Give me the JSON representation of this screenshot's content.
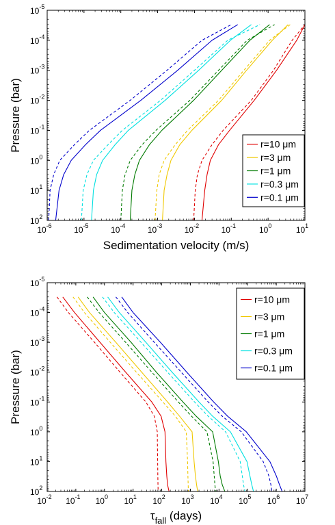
{
  "chart_data": [
    {
      "type": "line",
      "xlabel": "Sedimentation velocity (m/s)",
      "ylabel": "Pressure (bar)",
      "xscale": "log",
      "yscale": "log",
      "y_reversed": true,
      "xlim": [
        1e-06,
        10
      ],
      "ylim": [
        1e-05,
        100
      ],
      "x_tick_values": [
        1e-06,
        1e-05,
        0.0001,
        0.001,
        0.01,
        0.1,
        1,
        10
      ],
      "x_tick_labels": [
        [
          "10",
          "-6"
        ],
        [
          "10",
          "-5"
        ],
        [
          "10",
          "-4"
        ],
        [
          "10",
          "-3"
        ],
        [
          "10",
          "-2"
        ],
        [
          "10",
          "-1"
        ],
        [
          "10",
          "0"
        ],
        [
          "10",
          "1"
        ]
      ],
      "y_tick_values": [
        1e-05,
        0.0001,
        0.001,
        0.01,
        0.1,
        1,
        10,
        100
      ],
      "y_tick_labels": [
        [
          "10",
          "-5"
        ],
        [
          "10",
          "-4"
        ],
        [
          "10",
          "-3"
        ],
        [
          "10",
          "-2"
        ],
        [
          "10",
          "-1"
        ],
        [
          "10",
          "0"
        ],
        [
          "10",
          "1"
        ],
        [
          "10",
          "2"
        ]
      ],
      "legend_position": "right-middle",
      "legend": [
        "r=10 μm",
        "r=3 μm",
        "r=1 μm",
        "r=0.3 μm",
        "r=0.1 μm"
      ],
      "series": [
        {
          "name": "r=10 μm",
          "color": "#e00000",
          "dash": false,
          "pressure": [
            100,
            10,
            3,
            1,
            0.3,
            0.1,
            0.01,
            0.001,
            0.0001,
            3e-05
          ],
          "x": [
            0.016,
            0.019,
            0.022,
            0.027,
            0.045,
            0.09,
            0.42,
            1.7,
            6.0,
            10.0
          ]
        },
        {
          "name": "r=10 μm",
          "color": "#e00000",
          "dash": true,
          "pressure": [
            100,
            10,
            3,
            1,
            0.3,
            0.1,
            0.01,
            0.001,
            0.0001,
            3e-05
          ],
          "x": [
            0.0095,
            0.0105,
            0.012,
            0.016,
            0.03,
            0.06,
            0.35,
            1.4,
            4.5,
            10.0
          ]
        },
        {
          "name": "r=3 μm",
          "color": "#f0c800",
          "dash": false,
          "pressure": [
            100,
            10,
            3,
            1,
            0.3,
            0.1,
            0.01,
            0.001,
            0.0001,
            3e-05
          ],
          "x": [
            0.00135,
            0.0015,
            0.0018,
            0.0023,
            0.004,
            0.0085,
            0.055,
            0.26,
            1.3,
            3.5
          ]
        },
        {
          "name": "r=3 μm",
          "color": "#f0c800",
          "dash": true,
          "pressure": [
            100,
            10,
            3,
            1,
            0.3,
            0.1,
            0.01,
            0.001,
            0.0001,
            3e-05
          ],
          "x": [
            0.00085,
            0.00095,
            0.0011,
            0.0015,
            0.003,
            0.0065,
            0.045,
            0.22,
            1.1,
            4.0
          ]
        },
        {
          "name": "r=1 μm",
          "color": "#007a00",
          "dash": false,
          "pressure": [
            100,
            10,
            3,
            1,
            0.3,
            0.1,
            0.01,
            0.001,
            0.0001,
            3e-05
          ],
          "x": [
            0.00018,
            0.0002,
            0.00024,
            0.00032,
            0.0006,
            0.0013,
            0.0095,
            0.055,
            0.32,
            1.1
          ]
        },
        {
          "name": "r=1 μm",
          "color": "#007a00",
          "dash": true,
          "pressure": [
            100,
            10,
            3,
            1,
            0.3,
            0.1,
            0.01,
            0.001,
            0.0001,
            3e-05
          ],
          "x": [
            0.0001,
            0.00011,
            0.00013,
            0.00018,
            0.00038,
            0.0009,
            0.0075,
            0.045,
            0.27,
            1.5
          ]
        },
        {
          "name": "r=0.3 μm",
          "color": "#00e0e0",
          "dash": false,
          "pressure": [
            100,
            10,
            3,
            1,
            0.3,
            0.1,
            0.01,
            0.001,
            0.0001,
            3e-05
          ],
          "x": [
            1.6e-05,
            1.8e-05,
            2.2e-05,
            3.2e-05,
            7e-05,
            0.00016,
            0.0016,
            0.013,
            0.095,
            0.35
          ]
        },
        {
          "name": "r=0.3 μm",
          "color": "#00e0e0",
          "dash": true,
          "pressure": [
            100,
            10,
            3,
            1,
            0.3,
            0.1,
            0.01,
            0.001,
            0.0001,
            3e-05
          ],
          "x": [
            8.5e-06,
            9.5e-06,
            1.2e-05,
            1.8e-05,
            4.5e-05,
            0.00011,
            0.0012,
            0.01,
            0.08,
            0.6
          ]
        },
        {
          "name": "r=0.1 μm",
          "color": "#0000cc",
          "dash": false,
          "pressure": [
            100,
            10,
            3,
            1,
            0.3,
            0.1,
            0.01,
            0.001,
            0.0001,
            3e-05
          ],
          "x": [
            1.7e-06,
            2.1e-06,
            2.8e-06,
            4.5e-06,
            1.1e-05,
            2.8e-05,
            0.00035,
            0.0035,
            0.03,
            0.15
          ]
        },
        {
          "name": "r=0.1 μm",
          "color": "#0000cc",
          "dash": true,
          "pressure": [
            100,
            10,
            3,
            1,
            0.3,
            0.1,
            0.01,
            0.001,
            0.0001,
            3e-05
          ],
          "x": [
            1.1e-06,
            1.2e-06,
            1.5e-06,
            2.2e-06,
            5.5e-06,
            1.4e-05,
            0.00018,
            0.0018,
            0.016,
            0.1
          ]
        }
      ]
    },
    {
      "type": "line",
      "xlabel_main": "τ",
      "xlabel_sub": "fall",
      "xlabel_rest": " (days)",
      "ylabel": "Pressure (bar)",
      "xscale": "log",
      "yscale": "log",
      "y_reversed": true,
      "xlim": [
        0.01,
        10000000.0
      ],
      "ylim": [
        1e-05,
        100
      ],
      "x_tick_values": [
        0.01,
        0.1,
        1,
        10,
        100,
        1000,
        10000,
        100000,
        1000000,
        10000000
      ],
      "x_tick_labels": [
        [
          "10",
          "-2"
        ],
        [
          "10",
          "-1"
        ],
        [
          "10",
          "0"
        ],
        [
          "10",
          "1"
        ],
        [
          "10",
          "2"
        ],
        [
          "10",
          "3"
        ],
        [
          "10",
          "4"
        ],
        [
          "10",
          "5"
        ],
        [
          "10",
          "6"
        ],
        [
          "10",
          "7"
        ]
      ],
      "y_tick_values": [
        1e-05,
        0.0001,
        0.001,
        0.01,
        0.1,
        1,
        10,
        100
      ],
      "y_tick_labels": [
        [
          "10",
          "-5"
        ],
        [
          "10",
          "-4"
        ],
        [
          "10",
          "-3"
        ],
        [
          "10",
          "-2"
        ],
        [
          "10",
          "-1"
        ],
        [
          "10",
          "0"
        ],
        [
          "10",
          "1"
        ],
        [
          "10",
          "2"
        ]
      ],
      "legend_position": "top-right",
      "legend": [
        "r=10 μm",
        "r=3 μm",
        "r=1 μm",
        "r=0.3 μm",
        "r=0.1 μm"
      ],
      "series": [
        {
          "name": "r=10 μm",
          "color": "#e00000",
          "dash": false,
          "pressure": [
            3e-05,
            0.0001,
            0.001,
            0.01,
            0.1,
            0.3,
            1,
            10,
            30,
            60,
            100
          ],
          "x": [
            0.035,
            0.09,
            0.7,
            5.5,
            45,
            95,
            130,
            140,
            150,
            160,
            180
          ]
        },
        {
          "name": "r=10 μm",
          "color": "#e00000",
          "dash": true,
          "pressure": [
            3e-05,
            0.0001,
            0.001,
            0.01,
            0.1,
            0.3,
            1,
            10,
            30,
            60,
            100
          ],
          "x": [
            0.022,
            0.055,
            0.45,
            3.5,
            28,
            55,
            70,
            72,
            73,
            74,
            75
          ]
        },
        {
          "name": "r=3 μm",
          "color": "#f0c800",
          "dash": false,
          "pressure": [
            3e-05,
            0.0001,
            0.001,
            0.01,
            0.1,
            0.3,
            1,
            10,
            30,
            60,
            100
          ],
          "x": [
            0.12,
            0.3,
            2.5,
            20,
            160,
            420,
            1150,
            1350,
            1500,
            1650,
            1800
          ]
        },
        {
          "name": "r=3 μm",
          "color": "#f0c800",
          "dash": true,
          "pressure": [
            3e-05,
            0.0001,
            0.001,
            0.01,
            0.1,
            0.3,
            1,
            10,
            30,
            60,
            100
          ],
          "x": [
            0.08,
            0.2,
            1.6,
            13,
            110,
            300,
            720,
            800,
            820,
            840,
            850
          ]
        },
        {
          "name": "r=1 μm",
          "color": "#007a00",
          "dash": false,
          "pressure": [
            3e-05,
            0.0001,
            0.001,
            0.01,
            0.1,
            0.3,
            1,
            10,
            30,
            60,
            100
          ],
          "x": [
            0.4,
            1,
            8.5,
            65,
            550,
            1600,
            6000,
            9500,
            11000,
            13000,
            16000
          ]
        },
        {
          "name": "r=1 μm",
          "color": "#007a00",
          "dash": true,
          "pressure": [
            3e-05,
            0.0001,
            0.001,
            0.01,
            0.1,
            0.3,
            1,
            10,
            30,
            60,
            100
          ],
          "x": [
            0.25,
            0.65,
            5.5,
            45,
            380,
            1100,
            3800,
            6200,
            6800,
            7200,
            7500
          ]
        },
        {
          "name": "r=0.3 μm",
          "color": "#00e0e0",
          "dash": false,
          "pressure": [
            3e-05,
            0.0001,
            0.001,
            0.01,
            0.1,
            0.3,
            1,
            10,
            30,
            60,
            100
          ],
          "x": [
            1.3,
            3.3,
            28,
            230,
            2000,
            6000,
            25000,
            95000,
            120000,
            140000,
            160000
          ]
        },
        {
          "name": "r=0.3 μm",
          "color": "#00e0e0",
          "dash": true,
          "pressure": [
            3e-05,
            0.0001,
            0.001,
            0.01,
            0.1,
            0.3,
            1,
            10,
            30,
            60,
            100
          ],
          "x": [
            0.85,
            2.2,
            19,
            160,
            1400,
            4200,
            17000,
            55000,
            65000,
            72000,
            80000
          ]
        },
        {
          "name": "r=0.1 μm",
          "color": "#0000cc",
          "dash": false,
          "pressure": [
            3e-05,
            0.0001,
            0.001,
            0.01,
            0.1,
            0.3,
            1,
            10,
            30,
            60,
            100
          ],
          "x": [
            4,
            10,
            90,
            750,
            6500,
            20000,
            90000,
            600000,
            1000000,
            1300000,
            1600000
          ]
        },
        {
          "name": "r=0.1 μm",
          "color": "#0000cc",
          "dash": true,
          "pressure": [
            3e-05,
            0.0001,
            0.001,
            0.01,
            0.1,
            0.3,
            1,
            10,
            30,
            60,
            100
          ],
          "x": [
            2.5,
            6.5,
            55,
            480,
            4200,
            13000,
            60000,
            350000,
            550000,
            650000,
            700000
          ]
        }
      ]
    }
  ]
}
